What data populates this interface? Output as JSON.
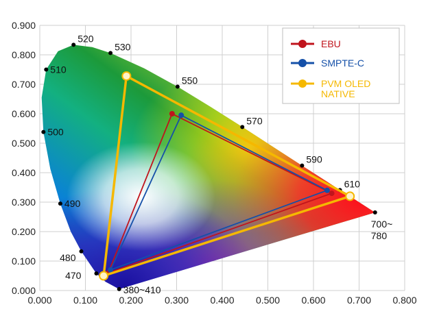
{
  "chart_data": {
    "type": "scatter",
    "subtype": "CIE 1931 chromaticity diagram with color gamut triangles",
    "xlim": [
      0.0,
      0.8
    ],
    "ylim": [
      0.0,
      0.9
    ],
    "x_ticks": [
      "0.000",
      "0.100",
      "0.200",
      "0.300",
      "0.400",
      "0.500",
      "0.600",
      "0.700",
      "0.800"
    ],
    "y_ticks": [
      "0.000",
      "0.100",
      "0.200",
      "0.300",
      "0.400",
      "0.500",
      "0.600",
      "0.700",
      "0.800",
      "0.900"
    ],
    "grid": true,
    "legend_position": "top-right",
    "spectral_locus_labels": [
      {
        "label": "520",
        "x": 0.074,
        "y": 0.834
      },
      {
        "label": "530",
        "x": 0.155,
        "y": 0.806
      },
      {
        "label": "510",
        "x": 0.014,
        "y": 0.75
      },
      {
        "label": "550",
        "x": 0.302,
        "y": 0.692
      },
      {
        "label": "500",
        "x": 0.008,
        "y": 0.538
      },
      {
        "label": "570",
        "x": 0.444,
        "y": 0.555
      },
      {
        "label": "590",
        "x": 0.575,
        "y": 0.424
      },
      {
        "label": "610",
        "x": 0.658,
        "y": 0.341
      },
      {
        "label": "490",
        "x": 0.045,
        "y": 0.295
      },
      {
        "label": "700~\n780",
        "x": 0.735,
        "y": 0.265
      },
      {
        "label": "480",
        "x": 0.091,
        "y": 0.133
      },
      {
        "label": "470",
        "x": 0.124,
        "y": 0.058
      },
      {
        "label": "380~410",
        "x": 0.174,
        "y": 0.005
      }
    ],
    "series": [
      {
        "name": "EBU",
        "color": "#c0141c",
        "points": [
          {
            "x": 0.64,
            "y": 0.33
          },
          {
            "x": 0.29,
            "y": 0.6
          },
          {
            "x": 0.15,
            "y": 0.06
          }
        ]
      },
      {
        "name": "SMPTE-C",
        "color": "#1550a8",
        "points": [
          {
            "x": 0.63,
            "y": 0.34
          },
          {
            "x": 0.31,
            "y": 0.595
          },
          {
            "x": 0.155,
            "y": 0.07
          }
        ]
      },
      {
        "name": "PVM OLED\nNATIVE",
        "color": "#f5b800",
        "points": [
          {
            "x": 0.68,
            "y": 0.32
          },
          {
            "x": 0.19,
            "y": 0.728
          },
          {
            "x": 0.14,
            "y": 0.05
          }
        ]
      }
    ]
  }
}
